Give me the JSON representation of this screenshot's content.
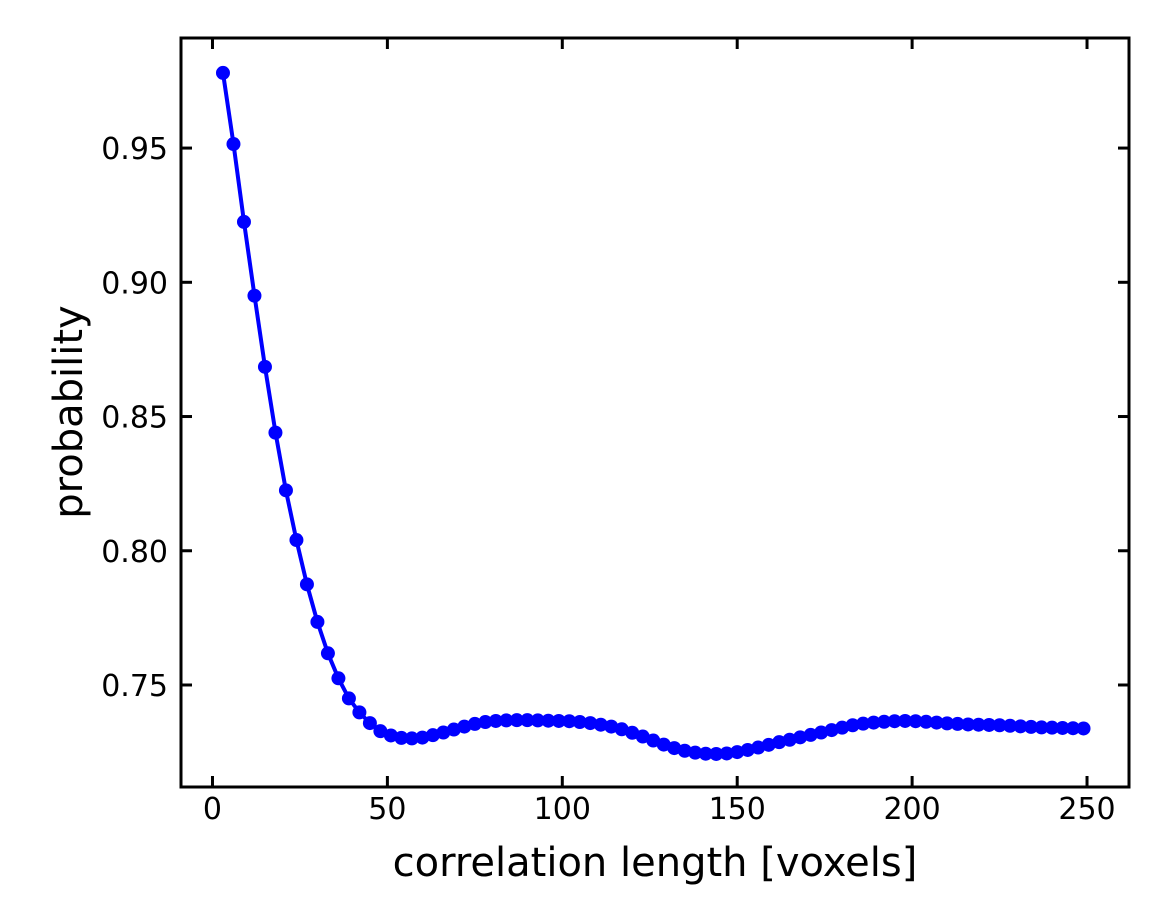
{
  "chart_data": {
    "type": "line",
    "title": "",
    "xlabel": "correlation length [voxels]",
    "ylabel": "probability",
    "xlim": [
      -9,
      262
    ],
    "ylim": [
      0.712,
      0.991
    ],
    "xticks": [
      0,
      50,
      100,
      150,
      200,
      250
    ],
    "xtick_labels": [
      "0",
      "50",
      "100",
      "150",
      "200",
      "250"
    ],
    "yticks": [
      0.75,
      0.8,
      0.85,
      0.9,
      0.95
    ],
    "ytick_labels": [
      "0.75",
      "0.80",
      "0.85",
      "0.90",
      "0.95"
    ],
    "grid": false,
    "legend": "none",
    "series": [
      {
        "color": "#0000ff",
        "marker": "circle",
        "x": [
          3,
          6,
          9,
          12,
          15,
          18,
          21,
          24,
          27,
          30,
          33,
          36,
          39,
          42,
          45,
          48,
          51,
          54,
          57,
          60,
          63,
          66,
          69,
          72,
          75,
          78,
          81,
          84,
          87,
          90,
          93,
          96,
          99,
          102,
          105,
          108,
          111,
          114,
          117,
          120,
          123,
          126,
          129,
          132,
          135,
          138,
          141,
          144,
          147,
          150,
          153,
          156,
          159,
          162,
          165,
          168,
          171,
          174,
          177,
          180,
          183,
          186,
          189,
          192,
          195,
          198,
          201,
          204,
          207,
          210,
          213,
          216,
          219,
          222,
          225,
          228,
          231,
          234,
          237,
          240,
          243,
          246,
          249
        ],
        "y": [
          0.978,
          0.9515,
          0.9225,
          0.895,
          0.8685,
          0.844,
          0.8225,
          0.804,
          0.7875,
          0.7735,
          0.7618,
          0.7525,
          0.745,
          0.7398,
          0.7358,
          0.7328,
          0.7312,
          0.7303,
          0.7301,
          0.7304,
          0.7313,
          0.7323,
          0.7334,
          0.7345,
          0.7355,
          0.7362,
          0.7366,
          0.7368,
          0.7369,
          0.7369,
          0.7368,
          0.7367,
          0.7366,
          0.7365,
          0.7362,
          0.7358,
          0.7352,
          0.7345,
          0.7335,
          0.7322,
          0.7308,
          0.7293,
          0.7278,
          0.7265,
          0.7255,
          0.7248,
          0.7244,
          0.7243,
          0.7245,
          0.725,
          0.7258,
          0.7267,
          0.7277,
          0.7287,
          0.7296,
          0.7305,
          0.7314,
          0.7323,
          0.7332,
          0.7341,
          0.735,
          0.7356,
          0.736,
          0.7363,
          0.7365,
          0.7366,
          0.7365,
          0.7363,
          0.736,
          0.7357,
          0.7355,
          0.7353,
          0.7352,
          0.7351,
          0.735,
          0.7348,
          0.7346,
          0.7344,
          0.7342,
          0.7341,
          0.734,
          0.7339,
          0.7338
        ]
      }
    ]
  }
}
